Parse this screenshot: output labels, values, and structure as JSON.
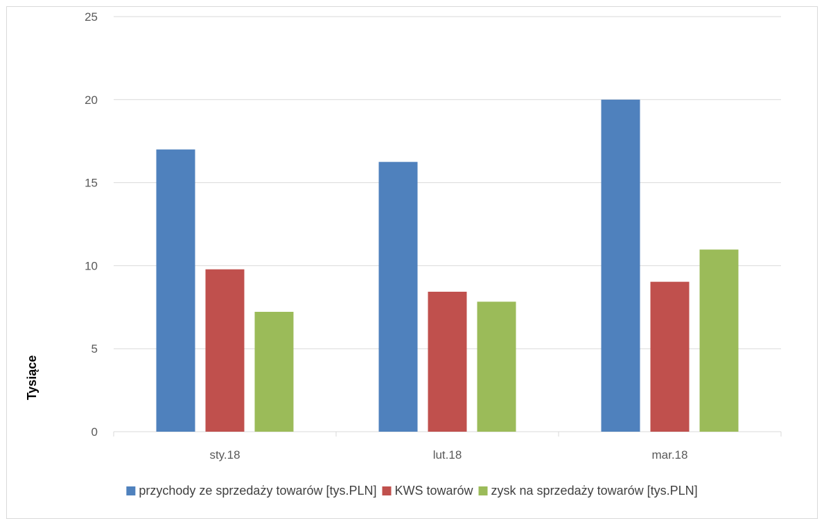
{
  "chart_data": {
    "type": "bar",
    "categories": [
      "sty.18",
      "lut.18",
      "mar.18"
    ],
    "series": [
      {
        "name": "przychody ze sprzedaży towarów [tys.PLN]",
        "color": "#4f81bd",
        "values": [
          17.0,
          16.25,
          20.0
        ]
      },
      {
        "name": "KWS towarów",
        "color": "#c0504d",
        "values": [
          9.78,
          8.43,
          9.03
        ]
      },
      {
        "name": "zysk na sprzedaży towarów [tys.PLN]",
        "color": "#9bbb59",
        "values": [
          7.22,
          7.83,
          10.97
        ]
      }
    ],
    "ylabel": "Tysiące",
    "ylim": [
      0,
      25
    ],
    "yticks": [
      0,
      5,
      10,
      15,
      20,
      25
    ],
    "grid": true,
    "legend_position": "bottom"
  }
}
